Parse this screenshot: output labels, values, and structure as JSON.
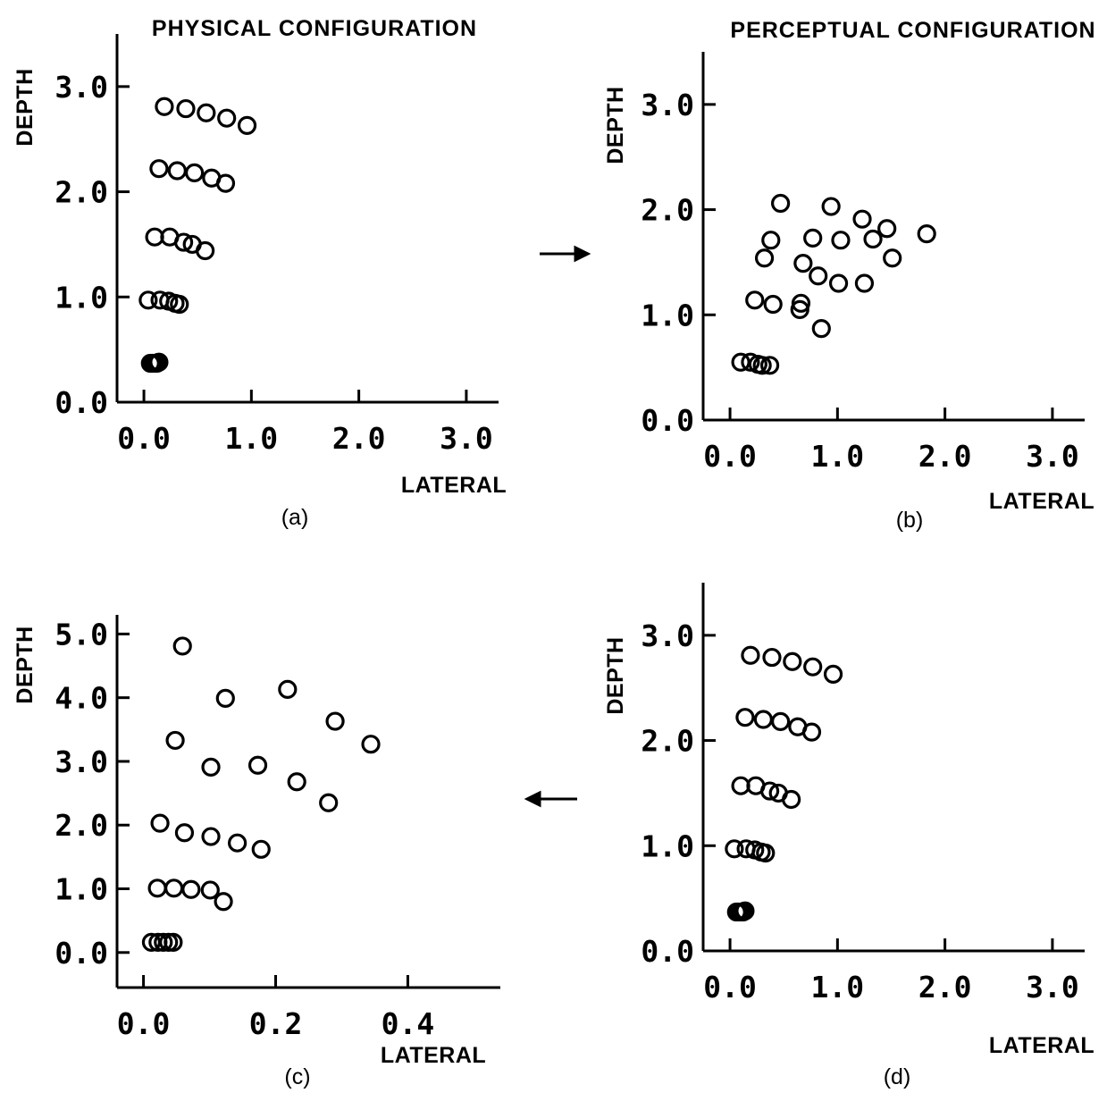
{
  "arrow_right": "→",
  "arrow_left": "←",
  "chart_data": [
    {
      "type": "scatter",
      "id": "a",
      "title": "PHYSICAL CONFIGURATION",
      "label": "(a)",
      "xlabel": "LATERAL",
      "ylabel": "DEPTH",
      "xlim": [
        -0.25,
        3.3
      ],
      "ylim": [
        0,
        3.5
      ],
      "xticks": [
        "0.0",
        "1.0",
        "2.0",
        "3.0"
      ],
      "xtick_values": [
        0.0,
        1.0,
        2.0,
        3.0
      ],
      "yticks": [
        "0.0",
        "1.0",
        "2.0",
        "3.0"
      ],
      "ytick_values": [
        0.0,
        1.0,
        2.0,
        3.0
      ],
      "points": [
        [
          0.06,
          0.37
        ],
        [
          0.08,
          0.37
        ],
        [
          0.1,
          0.37
        ],
        [
          0.12,
          0.37
        ],
        [
          0.14,
          0.38
        ],
        [
          0.04,
          0.97
        ],
        [
          0.15,
          0.97
        ],
        [
          0.23,
          0.96
        ],
        [
          0.29,
          0.94
        ],
        [
          0.33,
          0.93
        ],
        [
          0.1,
          1.57
        ],
        [
          0.24,
          1.57
        ],
        [
          0.37,
          1.52
        ],
        [
          0.45,
          1.5
        ],
        [
          0.57,
          1.44
        ],
        [
          0.14,
          2.22
        ],
        [
          0.31,
          2.2
        ],
        [
          0.47,
          2.18
        ],
        [
          0.63,
          2.13
        ],
        [
          0.76,
          2.08
        ],
        [
          0.19,
          2.81
        ],
        [
          0.39,
          2.79
        ],
        [
          0.58,
          2.75
        ],
        [
          0.77,
          2.7
        ],
        [
          0.96,
          2.63
        ]
      ]
    },
    {
      "type": "scatter",
      "id": "b",
      "title": "PERCEPTUAL CONFIGURATION",
      "label": "(b)",
      "xlabel": "LATERAL",
      "ylabel": "DEPTH",
      "xlim": [
        -0.25,
        3.3
      ],
      "ylim": [
        0,
        3.5
      ],
      "xticks": [
        "0.0",
        "1.0",
        "2.0",
        "3.0"
      ],
      "xtick_values": [
        0.0,
        1.0,
        2.0,
        3.0
      ],
      "yticks": [
        "0.0",
        "1.0",
        "2.0",
        "3.0"
      ],
      "ytick_values": [
        0.0,
        1.0,
        2.0,
        3.0
      ],
      "points": [
        [
          0.1,
          0.55
        ],
        [
          0.19,
          0.55
        ],
        [
          0.26,
          0.53
        ],
        [
          0.3,
          0.52
        ],
        [
          0.37,
          0.52
        ],
        [
          0.23,
          1.14
        ],
        [
          0.4,
          1.1
        ],
        [
          0.65,
          1.05
        ],
        [
          0.66,
          1.11
        ],
        [
          0.85,
          0.87
        ],
        [
          0.32,
          1.54
        ],
        [
          0.68,
          1.49
        ],
        [
          0.82,
          1.37
        ],
        [
          1.01,
          1.3
        ],
        [
          1.25,
          1.3
        ],
        [
          0.38,
          1.71
        ],
        [
          0.77,
          1.73
        ],
        [
          1.03,
          1.71
        ],
        [
          1.33,
          1.72
        ],
        [
          1.51,
          1.54
        ],
        [
          0.47,
          2.06
        ],
        [
          0.94,
          2.03
        ],
        [
          1.23,
          1.91
        ],
        [
          1.46,
          1.82
        ],
        [
          1.83,
          1.77
        ]
      ]
    },
    {
      "type": "scatter",
      "id": "c",
      "label": "(c)",
      "xlabel": "LATERAL",
      "ylabel": "DEPTH",
      "xlim": [
        -0.04,
        0.54
      ],
      "ylim": [
        -0.55,
        5.3
      ],
      "xticks": [
        "0.0",
        "0.2",
        "0.4"
      ],
      "xtick_values": [
        0.0,
        0.2,
        0.4
      ],
      "yticks": [
        "0.0",
        "1.0",
        "2.0",
        "3.0",
        "4.0",
        "5.0"
      ],
      "ytick_values": [
        0.0,
        1.0,
        2.0,
        3.0,
        4.0,
        5.0
      ],
      "points": [
        [
          0.012,
          0.16
        ],
        [
          0.022,
          0.16
        ],
        [
          0.03,
          0.16
        ],
        [
          0.038,
          0.16
        ],
        [
          0.045,
          0.16
        ],
        [
          0.021,
          1.01
        ],
        [
          0.046,
          1.01
        ],
        [
          0.072,
          0.99
        ],
        [
          0.101,
          0.98
        ],
        [
          0.121,
          0.8
        ],
        [
          0.025,
          2.03
        ],
        [
          0.062,
          1.88
        ],
        [
          0.102,
          1.82
        ],
        [
          0.142,
          1.72
        ],
        [
          0.178,
          1.62
        ],
        [
          0.048,
          3.33
        ],
        [
          0.102,
          2.91
        ],
        [
          0.173,
          2.94
        ],
        [
          0.232,
          2.68
        ],
        [
          0.28,
          2.35
        ],
        [
          0.059,
          4.81
        ],
        [
          0.124,
          3.99
        ],
        [
          0.218,
          4.13
        ],
        [
          0.29,
          3.63
        ],
        [
          0.344,
          3.27
        ]
      ]
    },
    {
      "type": "scatter",
      "id": "d",
      "label": "(d)",
      "xlabel": "LATERAL",
      "ylabel": "DEPTH",
      "xlim": [
        -0.25,
        3.3
      ],
      "ylim": [
        0,
        3.5
      ],
      "xticks": [
        "0.0",
        "1.0",
        "2.0",
        "3.0"
      ],
      "xtick_values": [
        0.0,
        1.0,
        2.0,
        3.0
      ],
      "yticks": [
        "0.0",
        "1.0",
        "2.0",
        "3.0"
      ],
      "ytick_values": [
        0.0,
        1.0,
        2.0,
        3.0
      ],
      "points": [
        [
          0.06,
          0.37
        ],
        [
          0.08,
          0.37
        ],
        [
          0.1,
          0.37
        ],
        [
          0.12,
          0.37
        ],
        [
          0.14,
          0.38
        ],
        [
          0.04,
          0.97
        ],
        [
          0.15,
          0.97
        ],
        [
          0.23,
          0.96
        ],
        [
          0.29,
          0.94
        ],
        [
          0.33,
          0.93
        ],
        [
          0.1,
          1.57
        ],
        [
          0.24,
          1.57
        ],
        [
          0.37,
          1.52
        ],
        [
          0.45,
          1.5
        ],
        [
          0.57,
          1.44
        ],
        [
          0.14,
          2.22
        ],
        [
          0.31,
          2.2
        ],
        [
          0.47,
          2.18
        ],
        [
          0.63,
          2.13
        ],
        [
          0.76,
          2.08
        ],
        [
          0.19,
          2.81
        ],
        [
          0.39,
          2.79
        ],
        [
          0.58,
          2.75
        ],
        [
          0.77,
          2.7
        ],
        [
          0.96,
          2.63
        ]
      ]
    }
  ]
}
